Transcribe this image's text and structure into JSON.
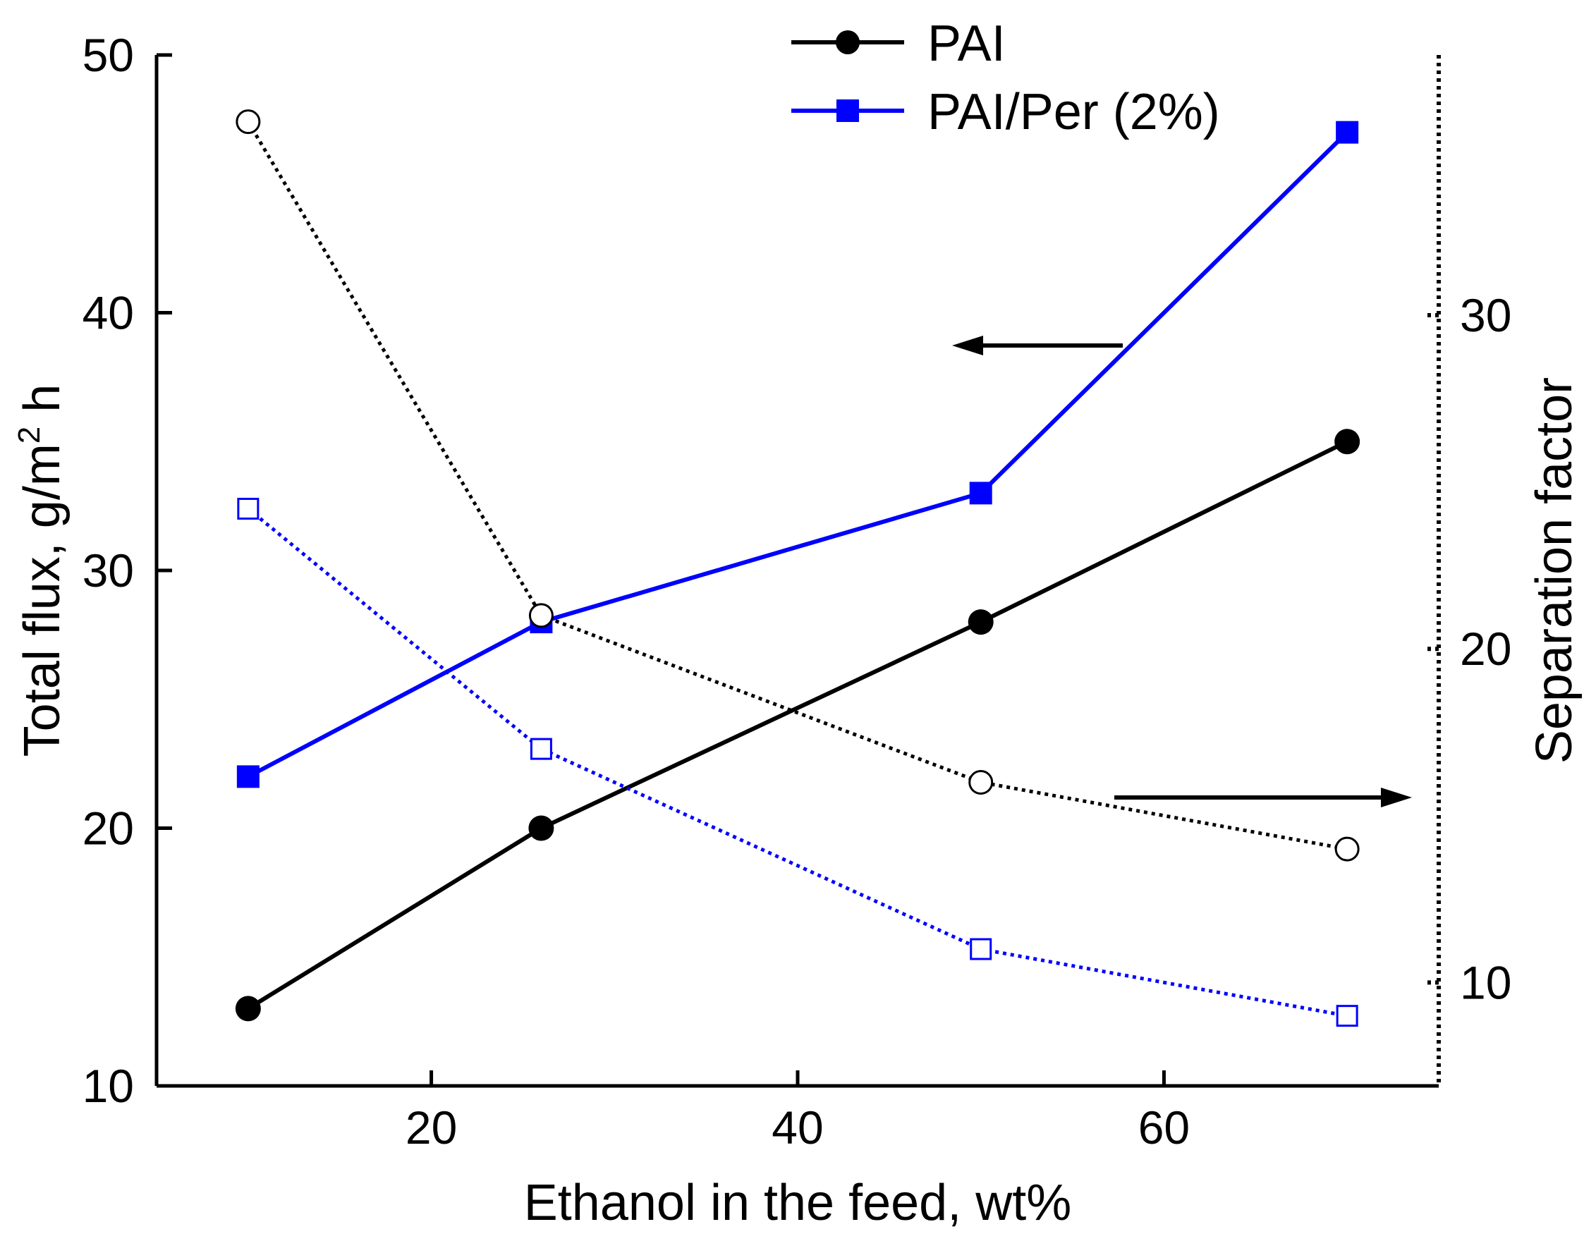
{
  "chart_data": {
    "type": "line",
    "xlabel": "Ethanol in the feed, wt%",
    "ylabel_left": {
      "main": "Total flux, g/m",
      "sup": "2",
      "tail": " h"
    },
    "ylabel_right": "Separation factor",
    "xlim": [
      5,
      75
    ],
    "x_ticks": [
      20,
      40,
      60
    ],
    "ylim_left": [
      10,
      50
    ],
    "y_ticks_left": [
      10,
      20,
      30,
      40,
      50
    ],
    "ylim_right": [
      6.9,
      37.8
    ],
    "y_ticks_right": [
      10,
      20,
      30
    ],
    "grid": false,
    "legend_position": "top-center",
    "x": [
      10,
      26,
      50,
      70
    ],
    "series": [
      {
        "name": "PAI",
        "axis": "left",
        "metric": "flux",
        "values": [
          13,
          20,
          28,
          35
        ],
        "color": "#000000",
        "marker": "circle-filled",
        "line": "solid",
        "show_in_legend": true
      },
      {
        "name": "PAI/Per (2%)",
        "axis": "left",
        "metric": "flux",
        "values": [
          22,
          28,
          33,
          47
        ],
        "color": "#0000ff",
        "marker": "square-filled",
        "line": "solid",
        "show_in_legend": true
      },
      {
        "name": "PAI",
        "axis": "right",
        "metric": "separation factor",
        "values": [
          35.8,
          21,
          16,
          14
        ],
        "color": "#000000",
        "marker": "circle-open",
        "line": "dotted",
        "show_in_legend": false
      },
      {
        "name": "PAI/Per (2%)",
        "axis": "right",
        "metric": "separation factor",
        "values": [
          24.2,
          17,
          11,
          9
        ],
        "color": "#0000ff",
        "marker": "square-open",
        "line": "dotted",
        "show_in_legend": false
      }
    ],
    "annotations": [
      {
        "type": "arrow",
        "direction": "left",
        "points_to": "left axis"
      },
      {
        "type": "arrow",
        "direction": "right",
        "points_to": "right axis"
      }
    ]
  }
}
